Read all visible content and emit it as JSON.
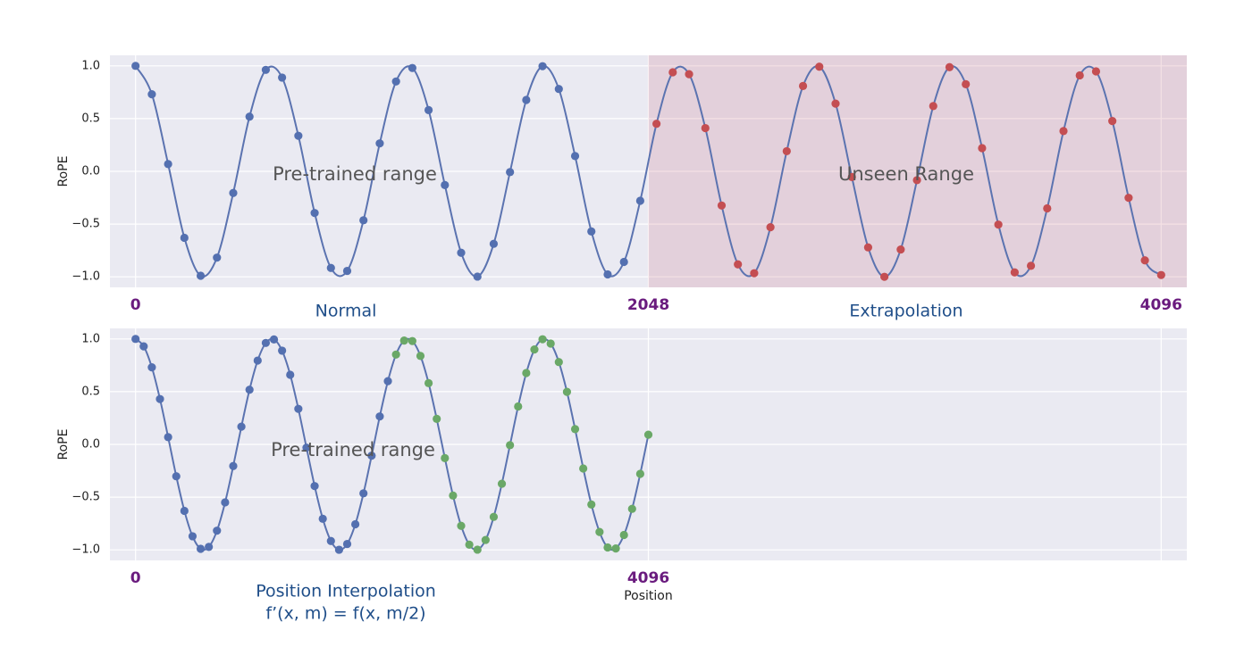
{
  "chart_data": [
    {
      "type": "line",
      "x": [
        0,
        65.0,
        130.0,
        195.0,
        260.1,
        325.1,
        390.1,
        455.1,
        520.1,
        585.1,
        650.2,
        715.2,
        780.2,
        845.2,
        910.2,
        975.2,
        1040.3,
        1105.3,
        1170.3,
        1235.3,
        1300.3,
        1365.3,
        1430.3,
        1495.4,
        1560.4,
        1625.4,
        1690.4,
        1755.4,
        1820.4,
        1885.5,
        1950.5,
        2015.5,
        2080.5,
        2145.5,
        2210.5,
        2275.6,
        2340.6,
        2405.6,
        2470.6,
        2535.6,
        2600.6,
        2665.7,
        2730.7,
        2795.7,
        2860.7,
        2925.7,
        2990.7,
        3055.8,
        3120.8,
        3185.8,
        3250.8,
        3315.8,
        3380.8,
        3445.8,
        3510.9,
        3575.9,
        3640.9,
        3705.9,
        3770.9,
        3835.9,
        3901.0,
        3966.0,
        4031.0,
        4096
      ],
      "values": [
        1.0,
        0.731,
        0.069,
        -0.63,
        -0.99,
        -0.818,
        -0.205,
        0.518,
        0.962,
        0.889,
        0.337,
        -0.395,
        -0.916,
        -0.944,
        -0.464,
        0.265,
        0.852,
        0.98,
        0.581,
        -0.13,
        -0.772,
        -0.998,
        -0.687,
        -0.007,
        0.677,
        0.997,
        0.781,
        0.145,
        -0.57,
        -0.977,
        -0.859,
        -0.279,
        0.451,
        0.939,
        0.921,
        0.41,
        -0.324,
        -0.882,
        -0.966,
        -0.53,
        0.191,
        0.809,
        0.992,
        0.642,
        -0.054,
        -0.721,
        -1.0,
        -0.741,
        -0.084,
        0.619,
        0.988,
        0.826,
        0.22,
        -0.505,
        -0.958,
        -0.896,
        -0.351,
        0.382,
        0.91,
        0.948,
        0.477,
        -0.251,
        -0.844,
        -0.983
      ],
      "line_color": "#5b73b0",
      "marker_colors": [
        {
          "start_index": 0,
          "color": "#5470b0"
        },
        {
          "start_index": 32,
          "color": "#c44e52"
        }
      ],
      "shade_from": 2048,
      "shade_color": "rgba(205,120,135,0.22)",
      "xlim": [
        -102.4,
        4198.4
      ],
      "ylim": [
        -1.1,
        1.1
      ],
      "xticks": [
        0,
        2048,
        4096
      ],
      "yticks": [
        {
          "value": 1.0,
          "label": "1.0"
        },
        {
          "value": 0.5,
          "label": "0.5"
        },
        {
          "value": 0.0,
          "label": "0.0"
        },
        {
          "value": -0.5,
          "label": "−0.5"
        },
        {
          "value": -1.0,
          "label": "−1.0"
        }
      ],
      "ylabel": "RoPE",
      "grid": true,
      "annotations": [
        "Pre-trained range",
        "Unseen Range",
        "Normal",
        "Extrapolation"
      ]
    },
    {
      "type": "line",
      "x": [
        0,
        65.0,
        130.0,
        195.0,
        260.1,
        325.1,
        390.1,
        455.1,
        520.1,
        585.1,
        650.2,
        715.2,
        780.2,
        845.2,
        910.2,
        975.2,
        1040.3,
        1105.3,
        1170.3,
        1235.3,
        1300.3,
        1365.3,
        1430.3,
        1495.4,
        1560.4,
        1625.4,
        1690.4,
        1755.4,
        1820.4,
        1885.5,
        1950.5,
        2015.5,
        2080.5,
        2145.5,
        2210.5,
        2275.6,
        2340.6,
        2405.6,
        2470.6,
        2535.6,
        2600.6,
        2665.7,
        2730.7,
        2795.7,
        2860.7,
        2925.7,
        2990.7,
        3055.8,
        3120.8,
        3185.8,
        3250.8,
        3315.8,
        3380.8,
        3445.8,
        3510.9,
        3575.9,
        3640.9,
        3705.9,
        3770.9,
        3835.9,
        3901.0,
        3966.0,
        4031.0,
        4096
      ],
      "values": [
        1.0,
        0.93,
        0.731,
        0.43,
        0.069,
        -0.302,
        -0.63,
        -0.871,
        -0.99,
        -0.972,
        -0.818,
        -0.55,
        -0.205,
        0.168,
        0.518,
        0.795,
        0.962,
        0.995,
        0.889,
        0.66,
        0.337,
        -0.031,
        -0.395,
        -0.705,
        -0.916,
        -0.999,
        -0.944,
        -0.757,
        -0.464,
        -0.107,
        0.265,
        0.6,
        0.852,
        0.985,
        0.98,
        0.839,
        0.581,
        0.242,
        -0.13,
        -0.485,
        -0.772,
        -0.951,
        -0.998,
        -0.906,
        -0.687,
        -0.373,
        -0.007,
        0.36,
        0.677,
        0.9,
        0.997,
        0.956,
        0.781,
        0.498,
        0.145,
        -0.228,
        -0.57,
        -0.83,
        -0.977,
        -0.987,
        -0.859,
        -0.611,
        -0.279,
        0.092
      ],
      "line_color": "#5b73b0",
      "marker_colors": [
        {
          "start_index": 0,
          "color": "#5470b0"
        },
        {
          "start_index": 32,
          "color": "#6aa867"
        }
      ],
      "xlim": [
        -204.8,
        8396.8
      ],
      "ylim": [
        -1.1,
        1.1
      ],
      "xticks": [
        0,
        4096,
        {
          "value": 8192,
          "label": null
        }
      ],
      "yticks": [
        {
          "value": 1.0,
          "label": "1.0"
        },
        {
          "value": 0.5,
          "label": "0.5"
        },
        {
          "value": 0.0,
          "label": "0.0"
        },
        {
          "value": -0.5,
          "label": "−0.5"
        },
        {
          "value": -1.0,
          "label": "−1.0"
        }
      ],
      "ylabel": "RoPE",
      "xlabel": "Position",
      "grid": true,
      "annotations": [
        "Pre-trained range",
        "Position Interpolation",
        "f’(x, m) = f(x, m/2)"
      ]
    }
  ]
}
